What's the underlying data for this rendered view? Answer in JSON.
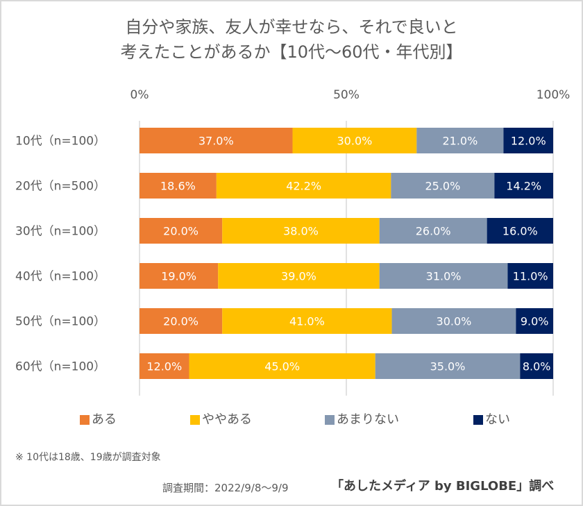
{
  "chart_data": {
    "type": "bar",
    "orientation": "horizontal",
    "stacked": true,
    "title_lines": [
      "自分や家族、友人が幸せなら、それで良いと",
      "考えたことがあるか【10代～60代・年代別】"
    ],
    "categories": [
      "10代（n=100）",
      "20代（n=500）",
      "30代（n=100）",
      "40代（n=100）",
      "50代（n=100）",
      "60代（n=100）"
    ],
    "series": [
      {
        "name": "ある",
        "color": "#ED7D31",
        "values": [
          37.0,
          18.6,
          20.0,
          19.0,
          20.0,
          12.0
        ],
        "labels": [
          "37.0%",
          "18.6%",
          "20.0%",
          "19.0%",
          "20.0%",
          "12.0%"
        ]
      },
      {
        "name": "ややある",
        "color": "#FFC000",
        "values": [
          30.0,
          42.2,
          38.0,
          39.0,
          41.0,
          45.0
        ],
        "labels": [
          "30.0%",
          "42.2%",
          "38.0%",
          "39.0%",
          "41.0%",
          "45.0%"
        ]
      },
      {
        "name": "あまりない",
        "color": "#8497B0",
        "values": [
          21.0,
          25.0,
          26.0,
          31.0,
          30.0,
          35.0
        ],
        "labels": [
          "21.0%",
          "25.0%",
          "26.0%",
          "31.0%",
          "30.0%",
          "35.0%"
        ]
      },
      {
        "name": "ない",
        "color": "#002060",
        "values": [
          12.0,
          14.2,
          16.0,
          11.0,
          9.0,
          8.0
        ],
        "labels": [
          "12.0%",
          "14.2%",
          "16.0%",
          "11.0%",
          "9.0%",
          "8.0%"
        ]
      }
    ],
    "xlim": [
      0,
      100
    ],
    "x_ticks": [
      0,
      50,
      100
    ],
    "x_tick_labels": [
      "0%",
      "50%",
      "100%"
    ],
    "x_axis_position": "top",
    "grid": true,
    "legend_position": "bottom"
  },
  "footer": {
    "note": "※ 10代は18歳、19歳が調査対象",
    "period": "調査期間：2022/9/8～9/9",
    "credit": "「あしたメディア by BIGLOBE」調べ"
  }
}
